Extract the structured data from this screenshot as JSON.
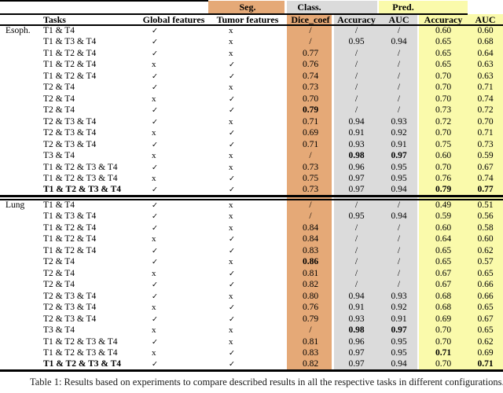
{
  "colors": {
    "seg": "#E5A977",
    "class": "#DBDBDB",
    "pred": "#FAFAAB",
    "rule": "#000000"
  },
  "header": {
    "groups": [
      {
        "label": "Seg."
      },
      {
        "label": "Class."
      },
      {
        "label": "Pred."
      }
    ],
    "columns": [
      "Tasks",
      "Global features",
      "Tumor features",
      "Dice_coef",
      "Accuracy",
      "AUC",
      "Accuracy",
      "AUC"
    ]
  },
  "table": {
    "sections": [
      {
        "group": "Esoph.",
        "rows": [
          [
            "T1 & T4",
            "✓",
            "x",
            "/",
            "/",
            "/",
            "0.60",
            "0.60"
          ],
          [
            "T1 & T3 & T4",
            "✓",
            "x",
            "/",
            "0.95",
            "0.94",
            "0.65",
            "0.68"
          ],
          [
            "T1 & T2 & T4",
            "✓",
            "x",
            "0.77",
            "/",
            "/",
            "0.65",
            "0.64"
          ],
          [
            "T1 & T2 & T4",
            "x",
            "✓",
            "0.76",
            "/",
            "/",
            "0.65",
            "0.63"
          ],
          [
            "T1 & T2 & T4",
            "✓",
            "✓",
            "0.74",
            "/",
            "/",
            "0.70",
            "0.63"
          ],
          [
            "T2 & T4",
            "✓",
            "x",
            "0.73",
            "/",
            "/",
            "0.70",
            "0.71"
          ],
          [
            "T2 & T4",
            "x",
            "✓",
            "0.70",
            "/",
            "/",
            "0.70",
            "0.74"
          ],
          [
            "T2 & T4",
            "✓",
            "✓",
            "*0.79",
            "/",
            "/",
            "0.73",
            "0.72"
          ],
          [
            "T2 & T3 & T4",
            "✓",
            "x",
            "0.71",
            "0.94",
            "0.93",
            "0.72",
            "0.70"
          ],
          [
            "T2 & T3 & T4",
            "x",
            "✓",
            "0.69",
            "0.91",
            "0.92",
            "0.70",
            "0.71"
          ],
          [
            "T2 & T3 & T4",
            "✓",
            "✓",
            "0.71",
            "0.93",
            "0.91",
            "0.75",
            "0.73"
          ],
          [
            "T3 & T4",
            "x",
            "x",
            "/",
            "*0.98",
            "*0.97",
            "0.60",
            "0.59"
          ],
          [
            "T1 & T2 & T3 & T4",
            "✓",
            "x",
            "0.73",
            "0.96",
            "0.95",
            "0.70",
            "0.67"
          ],
          [
            "T1 & T2 & T3 & T4",
            "x",
            "✓",
            "0.75",
            "0.97",
            "0.95",
            "0.76",
            "0.74"
          ],
          [
            "*T1 & T2 & T3 & T4",
            "✓",
            "✓",
            "0.73",
            "0.97",
            "0.94",
            "*0.79",
            "*0.77"
          ]
        ]
      },
      {
        "group": "Lung",
        "rows": [
          [
            "T1 & T4",
            "✓",
            "x",
            "/",
            "/",
            "/",
            "0.49",
            "0.51"
          ],
          [
            "T1 & T3 & T4",
            "✓",
            "x",
            "/",
            "0.95",
            "0.94",
            "0.59",
            "0.56"
          ],
          [
            "T1 & T2 & T4",
            "✓",
            "x",
            "0.84",
            "/",
            "/",
            "0.60",
            "0.58"
          ],
          [
            "T1 & T2 & T4",
            "x",
            "✓",
            "0.84",
            "/",
            "/",
            "0.64",
            "0.60"
          ],
          [
            "T1 & T2 & T4",
            "✓",
            "✓",
            "0.83",
            "/",
            "/",
            "0.65",
            "0.62"
          ],
          [
            "T2 & T4",
            "✓",
            "x",
            "*0.86",
            "/",
            "/",
            "0.65",
            "0.57"
          ],
          [
            "T2 & T4",
            "x",
            "✓",
            "0.81",
            "/",
            "/",
            "0.67",
            "0.65"
          ],
          [
            "T2 & T4",
            "✓",
            "✓",
            "0.82",
            "/",
            "/",
            "0.67",
            "0.66"
          ],
          [
            "T2 & T3 & T4",
            "✓",
            "x",
            "0.80",
            "0.94",
            "0.93",
            "0.68",
            "0.66"
          ],
          [
            "T2 & T3 & T4",
            "x",
            "✓",
            "0.76",
            "0.91",
            "0.92",
            "0.68",
            "0.65"
          ],
          [
            "T2 & T3 & T4",
            "✓",
            "✓",
            "0.79",
            "0.93",
            "0.91",
            "0.69",
            "0.67"
          ],
          [
            "T3 & T4",
            "x",
            "x",
            "/",
            "*0.98",
            "*0.97",
            "0.70",
            "0.65"
          ],
          [
            "T1 & T2 & T3 & T4",
            "✓",
            "x",
            "0.81",
            "0.96",
            "0.95",
            "0.70",
            "0.62"
          ],
          [
            "T1 & T2 & T3 & T4",
            "x",
            "✓",
            "0.83",
            "0.97",
            "0.95",
            "*0.71",
            "0.69"
          ],
          [
            "*T1 & T2 & T3 & T4",
            "✓",
            "✓",
            "0.82",
            "0.97",
            "0.94",
            "0.70",
            "*0.71"
          ]
        ]
      }
    ]
  },
  "caption": "Table 1: Results based on experiments to compare described results in all the respective tasks in different configurations."
}
